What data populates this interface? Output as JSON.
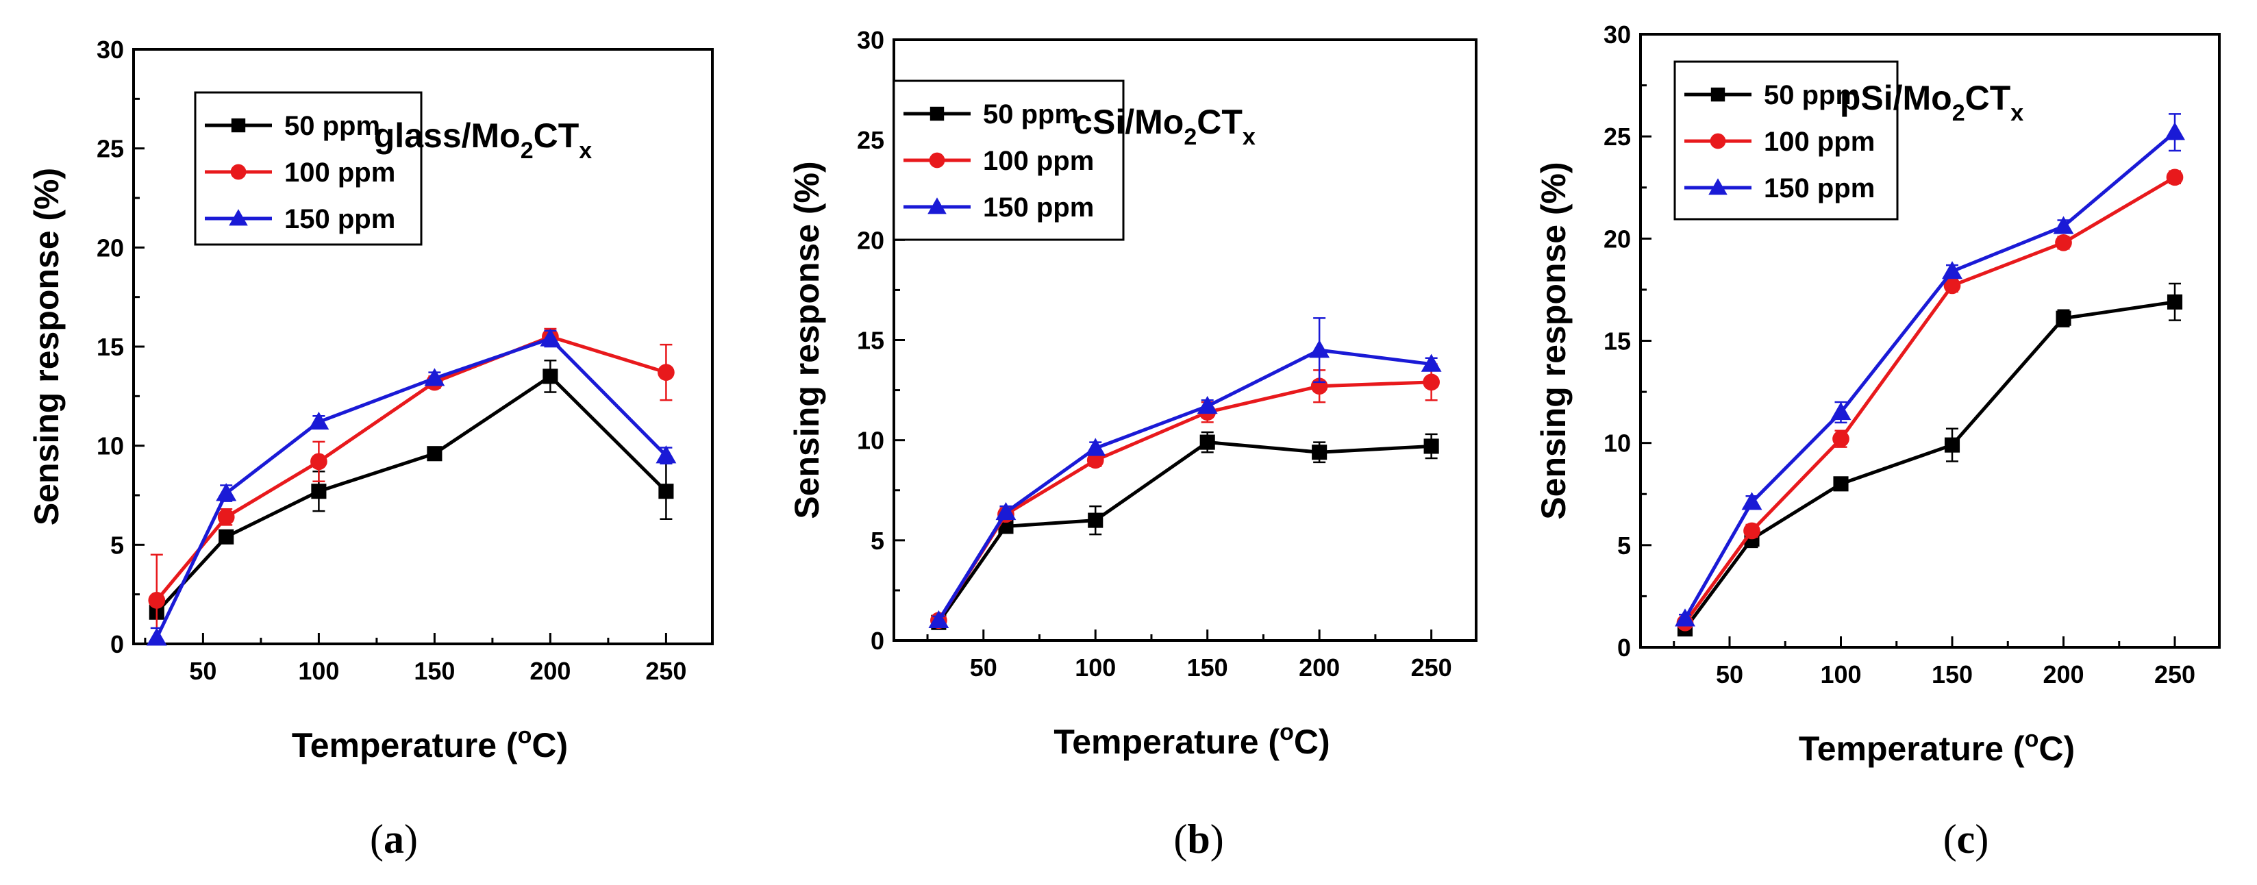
{
  "chart_data": [
    {
      "type": "line",
      "panel_label": "(a)",
      "panel_letter": "a",
      "title": "glass/Mo2CTx",
      "title_parts": {
        "pre": "glass/Mo",
        "sub1": "2",
        "mid": "CT",
        "sub2": "x"
      },
      "xlabel": "Temperature (oC)",
      "xlabel_parts": {
        "pre": "Temperature (",
        "sup": "o",
        "post": "C)"
      },
      "ylabel": "Sensing response (%)",
      "xlim": [
        20,
        270
      ],
      "ylim": [
        0,
        30
      ],
      "x_ticks": [
        50,
        100,
        150,
        200,
        250
      ],
      "y_ticks": [
        0,
        5,
        10,
        15,
        20,
        25,
        30
      ],
      "x": [
        30,
        60,
        100,
        150,
        200,
        250
      ],
      "legend_position": "top-left",
      "series": [
        {
          "name": "50 ppm",
          "color": "#000000",
          "marker": "square",
          "values": [
            1.6,
            5.4,
            7.7,
            9.6,
            13.5,
            7.7
          ],
          "errors": [
            0.3,
            0.3,
            1.0,
            0.2,
            0.8,
            1.4
          ]
        },
        {
          "name": "100 ppm",
          "color": "#e8191c",
          "marker": "circle",
          "values": [
            2.2,
            6.4,
            9.2,
            13.2,
            15.5,
            13.7
          ],
          "errors": [
            2.3,
            0.4,
            1.0,
            0.3,
            0.4,
            1.4
          ]
        },
        {
          "name": "150 ppm",
          "color": "#1a1ad6",
          "marker": "triangle",
          "values": [
            0.3,
            7.6,
            11.2,
            13.4,
            15.4,
            9.5
          ],
          "errors": [
            0.5,
            0.4,
            0.3,
            0.3,
            0.4,
            0.4
          ]
        }
      ]
    },
    {
      "type": "line",
      "panel_label": "(b)",
      "panel_letter": "b",
      "title": "cSi/Mo2CTx",
      "title_parts": {
        "pre": "cSi/Mo",
        "sub1": "2",
        "mid": "CT",
        "sub2": "x"
      },
      "xlabel": "Temperature (oC)",
      "xlabel_parts": {
        "pre": "Temperature (",
        "sup": "o",
        "post": "C)"
      },
      "ylabel": "Sensing response (%)",
      "xlim": [
        10,
        270
      ],
      "ylim": [
        0,
        30
      ],
      "x_ticks": [
        50,
        100,
        150,
        200,
        250
      ],
      "y_ticks": [
        0,
        5,
        10,
        15,
        20,
        25,
        30
      ],
      "x": [
        30,
        60,
        100,
        150,
        200,
        250
      ],
      "legend_position": "top-left",
      "series": [
        {
          "name": "50 ppm",
          "color": "#000000",
          "marker": "square",
          "values": [
            0.9,
            5.7,
            6.0,
            9.9,
            9.4,
            9.7
          ],
          "errors": [
            0.3,
            0.3,
            0.7,
            0.5,
            0.5,
            0.6
          ]
        },
        {
          "name": "100 ppm",
          "color": "#e8191c",
          "marker": "circle",
          "values": [
            1.0,
            6.3,
            9.0,
            11.4,
            12.7,
            12.9
          ],
          "errors": [
            0.2,
            0.3,
            0.3,
            0.5,
            0.8,
            0.9
          ]
        },
        {
          "name": "150 ppm",
          "color": "#1a1ad6",
          "marker": "triangle",
          "values": [
            1.0,
            6.4,
            9.6,
            11.7,
            14.5,
            13.8
          ],
          "errors": [
            0.2,
            0.3,
            0.3,
            0.3,
            1.6,
            0.3
          ]
        }
      ]
    },
    {
      "type": "line",
      "panel_label": "(c)",
      "panel_letter": "c",
      "title": "pSi/Mo2CTx",
      "title_parts": {
        "pre": "pSi/Mo",
        "sub1": "2",
        "mid": "CT",
        "sub2": "x"
      },
      "xlabel": "Temperature (oC)",
      "xlabel_parts": {
        "pre": "Temperature (",
        "sup": "o",
        "post": "C)"
      },
      "ylabel": "Sensing response (%)",
      "xlim": [
        10,
        270
      ],
      "ylim": [
        0,
        30
      ],
      "x_ticks": [
        50,
        100,
        150,
        200,
        250
      ],
      "y_ticks": [
        0,
        5,
        10,
        15,
        20,
        25,
        30
      ],
      "x": [
        30,
        60,
        100,
        150,
        200,
        250
      ],
      "legend_position": "top-left",
      "series": [
        {
          "name": "50 ppm",
          "color": "#000000",
          "marker": "square",
          "values": [
            0.9,
            5.3,
            8.0,
            9.9,
            16.1,
            16.9
          ],
          "errors": [
            0.3,
            0.4,
            0.3,
            0.8,
            0.4,
            0.9
          ]
        },
        {
          "name": "100 ppm",
          "color": "#e8191c",
          "marker": "circle",
          "values": [
            1.2,
            5.7,
            10.2,
            17.7,
            19.8,
            23.0
          ],
          "errors": [
            0.2,
            0.3,
            0.4,
            0.3,
            0.3,
            0.3
          ]
        },
        {
          "name": "150 ppm",
          "color": "#1a1ad6",
          "marker": "triangle",
          "values": [
            1.4,
            7.1,
            11.5,
            18.4,
            20.6,
            25.2
          ],
          "errors": [
            0.2,
            0.3,
            0.5,
            0.3,
            0.3,
            0.9
          ]
        }
      ]
    }
  ]
}
